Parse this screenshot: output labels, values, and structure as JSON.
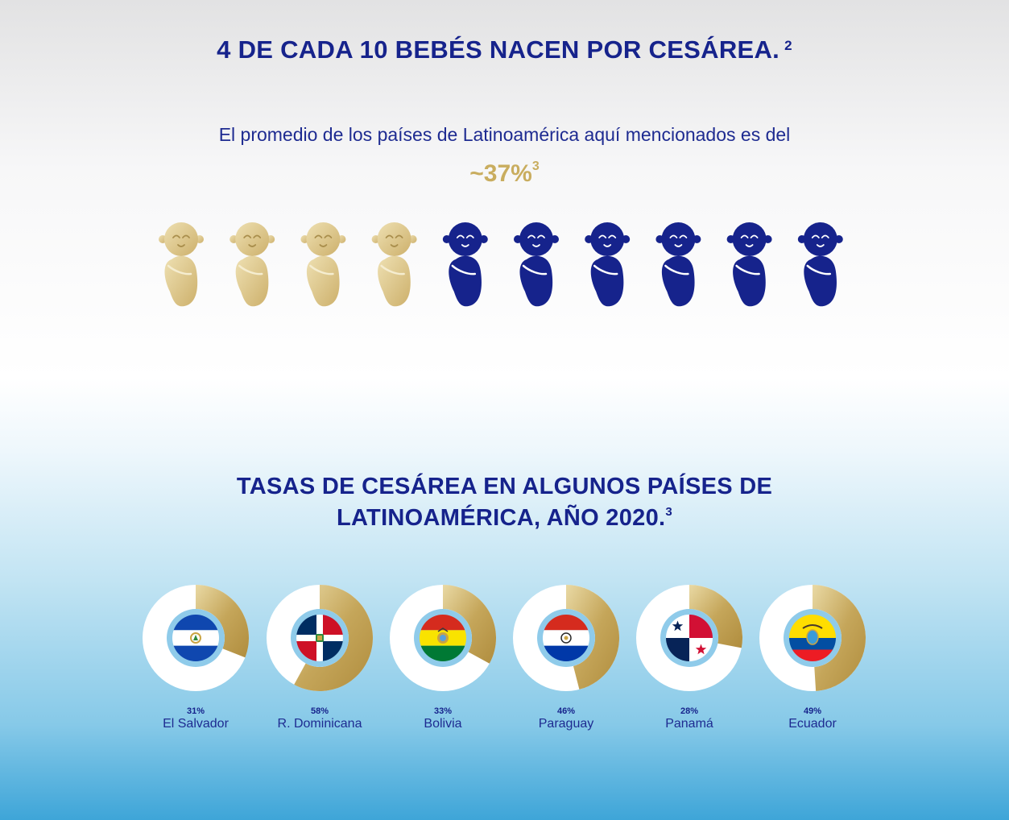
{
  "header": {
    "title": "4 DE CADA 10 BEBÉS NACEN POR CESÁREA.",
    "title_ref": "2",
    "subtitle": "El promedio de los países de Latinoamérica aquí mencionados es del",
    "average": "~37%",
    "average_ref": "3"
  },
  "babies": {
    "total": 10,
    "highlighted": 4,
    "highlight_color": "#d8c483",
    "base_color": "#16238c"
  },
  "section2": {
    "title_line1": "TASAS DE CESÁREA EN ALGUNOS PAÍSES DE",
    "title_line2": "LATINOAMÉRICA, AÑO 2020.",
    "title_ref": "3"
  },
  "colors": {
    "navy": "#16238c",
    "gold": "#c9ad5f",
    "ring": "#8fcbea"
  },
  "chart_data": {
    "type": "pie",
    "title": "TASAS DE CESÁREA EN ALGUNOS PAÍSES DE LATINOAMÉRICA, AÑO 2020.",
    "unit": "%",
    "categories": [
      "El Salvador",
      "R. Dominicana",
      "Bolivia",
      "Paraguay",
      "Panamá",
      "Ecuador"
    ],
    "values": [
      31,
      58,
      33,
      46,
      28,
      49
    ],
    "labels": [
      "31%",
      "58%",
      "33%",
      "46%",
      "28%",
      "49%"
    ],
    "icons": [
      "flag-el-salvador-icon",
      "flag-dominican-republic-icon",
      "flag-bolivia-icon",
      "flag-paraguay-icon",
      "flag-panama-icon",
      "flag-ecuador-icon"
    ]
  }
}
